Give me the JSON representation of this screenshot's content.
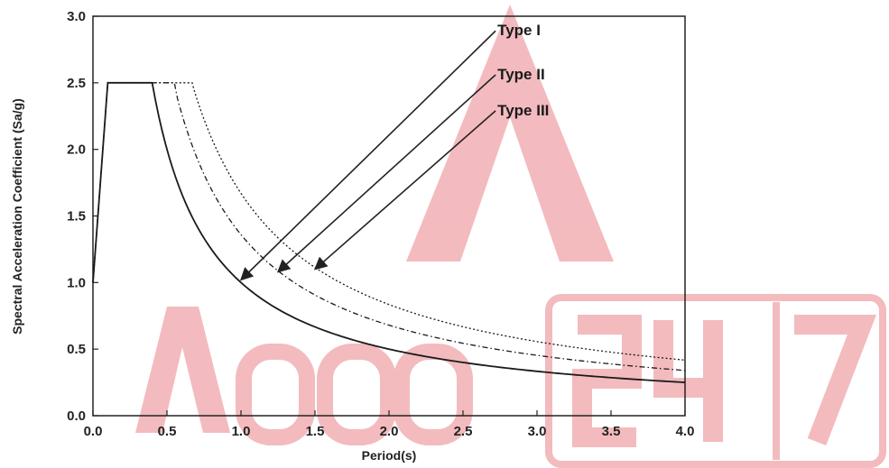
{
  "chart_data": {
    "type": "line",
    "title": "",
    "xlabel": "Period(s)",
    "ylabel": "Spectral Acceleration Coefficient (Sa/g)",
    "xlim": [
      0,
      4.0
    ],
    "ylim": [
      0,
      3.0
    ],
    "x_ticks": [
      "0.0",
      "0.5",
      "1.0",
      "1.5",
      "2.0",
      "2.5",
      "3.0",
      "3.5",
      "4.0"
    ],
    "y_ticks": [
      "0.0",
      "0.5",
      "1.0",
      "1.5",
      "2.0",
      "2.5",
      "3.0"
    ],
    "grid": false,
    "series": [
      {
        "name": "Type I",
        "line_style": "solid",
        "start": 1.0,
        "ramp_end": 0.1,
        "plateau_end": 0.4,
        "plateau": 2.5,
        "coefficient": 1.0,
        "end": 4.0
      },
      {
        "name": "Type II",
        "line_style": "dash-dot",
        "start": 1.0,
        "ramp_end": 0.1,
        "plateau_end": 0.55,
        "plateau": 2.5,
        "coefficient": 1.36,
        "end": 4.0
      },
      {
        "name": "Type III",
        "line_style": "dotted",
        "start": 1.0,
        "ramp_end": 0.1,
        "plateau_end": 0.67,
        "plateau": 2.5,
        "coefficient": 1.67,
        "end": 4.0
      }
    ],
    "annotations": [
      {
        "text": "Type I",
        "label_at": [
          2.72,
          2.89
        ],
        "arrow_to": [
          1.0,
          1.02
        ]
      },
      {
        "text": "Type II",
        "label_at": [
          2.72,
          2.56
        ],
        "arrow_to": [
          1.25,
          1.08
        ]
      },
      {
        "text": "Type III",
        "label_at": [
          2.72,
          2.29
        ],
        "arrow_to": [
          1.5,
          1.1
        ]
      }
    ]
  },
  "watermark": {
    "text": "Adda247",
    "color": "#f2b4b8"
  }
}
